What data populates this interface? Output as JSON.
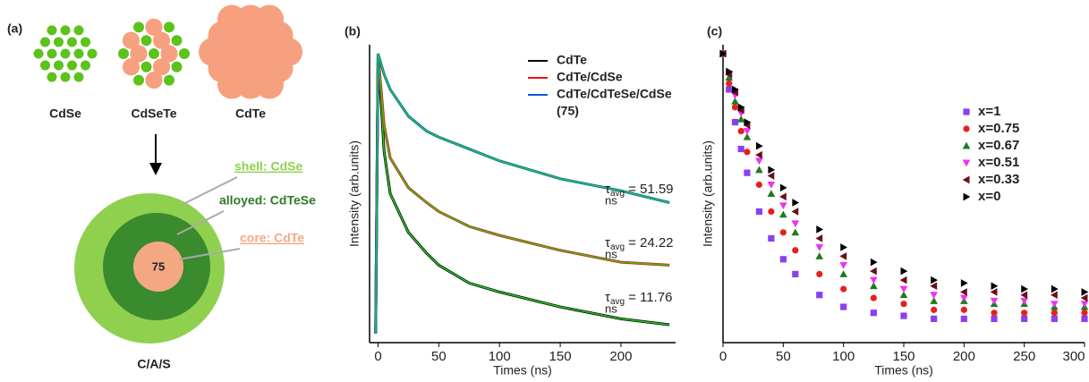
{
  "panel_a": {
    "label": "(a)",
    "clusters": [
      "CdSe",
      "CdSeTe",
      "CdTe"
    ],
    "layers": {
      "shell": "shell: CdSe",
      "alloyed": "alloyed: CdTeSe",
      "core": "core: CdTe"
    },
    "core_text": "75",
    "structure": "C/A/S"
  },
  "chart_data": [
    {
      "type": "line",
      "panel_label": "(b)",
      "x_label": "Times (ns)",
      "y_label": "Intensity (arb.units)",
      "x": [
        -2,
        0,
        5,
        10,
        25,
        40,
        50,
        75,
        100,
        150,
        200,
        240
      ],
      "xlim": [
        -7,
        245
      ],
      "ylim": [
        0,
        1
      ],
      "xticks": [
        0,
        50,
        100,
        150,
        200
      ],
      "fit_color": "#22cc22",
      "legend_note": "(75)",
      "series": [
        {
          "name": "CdTe",
          "color": "#000000",
          "values": [
            0.03,
            0.97,
            0.64,
            0.5,
            0.37,
            0.3,
            0.26,
            0.2,
            0.17,
            0.12,
            0.08,
            0.06
          ]
        },
        {
          "name": "CdTe/CdSe",
          "color": "#ee1111",
          "values": [
            0.03,
            0.97,
            0.73,
            0.62,
            0.52,
            0.47,
            0.44,
            0.39,
            0.36,
            0.31,
            0.27,
            0.26
          ]
        },
        {
          "name": "CdTe/CdTeSe/CdSe",
          "color": "#1155dd",
          "values": [
            0.03,
            0.97,
            0.9,
            0.85,
            0.76,
            0.71,
            0.69,
            0.65,
            0.61,
            0.55,
            0.51,
            0.47
          ]
        }
      ],
      "annotations": [
        {
          "symbol": "τ",
          "subscript": "avg",
          "text": "= 51.59",
          "unit": "ns"
        },
        {
          "symbol": "τ",
          "subscript": "avg",
          "text": "= 24.22",
          "unit": "ns"
        },
        {
          "symbol": "τ",
          "subscript": "avg",
          "text": "= 11.76",
          "unit": "ns"
        }
      ]
    },
    {
      "type": "scatter",
      "panel_label": "(c)",
      "x_label": "Times (ns)",
      "y_label": "Intensity (arb.units)",
      "x": [
        0,
        5,
        10,
        15,
        20,
        30,
        40,
        50,
        60,
        80,
        100,
        125,
        150,
        175,
        200,
        225,
        250,
        275,
        300
      ],
      "xlim": [
        0,
        300
      ],
      "ylim": [
        0,
        1
      ],
      "xticks": [
        0,
        50,
        100,
        150,
        200,
        250,
        300
      ],
      "series": [
        {
          "name": "x=1",
          "color": "#8b3ff0",
          "marker": "square",
          "values": [
            0.97,
            0.85,
            0.74,
            0.65,
            0.57,
            0.44,
            0.35,
            0.28,
            0.23,
            0.16,
            0.12,
            0.1,
            0.09,
            0.08,
            0.08,
            0.08,
            0.08,
            0.08,
            0.08
          ]
        },
        {
          "name": "x=0.75",
          "color": "#e8201c",
          "marker": "circle",
          "values": [
            0.97,
            0.87,
            0.79,
            0.71,
            0.64,
            0.53,
            0.44,
            0.37,
            0.31,
            0.23,
            0.18,
            0.15,
            0.13,
            0.11,
            0.11,
            0.1,
            0.1,
            0.1,
            0.1
          ]
        },
        {
          "name": "x=0.67",
          "color": "#1f7a1f",
          "marker": "triangle-up",
          "values": [
            0.97,
            0.89,
            0.81,
            0.75,
            0.69,
            0.58,
            0.5,
            0.43,
            0.37,
            0.29,
            0.23,
            0.19,
            0.16,
            0.14,
            0.14,
            0.13,
            0.13,
            0.12,
            0.12
          ]
        },
        {
          "name": "x=0.51",
          "color": "#ee33ee",
          "marker": "triangle-down",
          "values": [
            0.97,
            0.9,
            0.83,
            0.77,
            0.71,
            0.61,
            0.53,
            0.46,
            0.4,
            0.32,
            0.26,
            0.21,
            0.18,
            0.16,
            0.15,
            0.14,
            0.14,
            0.13,
            0.13
          ]
        },
        {
          "name": "x=0.33",
          "color": "#6b0f1a",
          "marker": "triangle-left",
          "values": [
            0.97,
            0.9,
            0.84,
            0.78,
            0.73,
            0.63,
            0.56,
            0.49,
            0.44,
            0.35,
            0.29,
            0.24,
            0.21,
            0.19,
            0.17,
            0.17,
            0.16,
            0.16,
            0.15
          ]
        },
        {
          "name": "x=0",
          "color": "#000000",
          "marker": "triangle-right",
          "values": [
            0.97,
            0.91,
            0.85,
            0.79,
            0.74,
            0.66,
            0.58,
            0.52,
            0.47,
            0.38,
            0.32,
            0.27,
            0.24,
            0.21,
            0.2,
            0.19,
            0.18,
            0.18,
            0.17
          ]
        }
      ]
    }
  ]
}
